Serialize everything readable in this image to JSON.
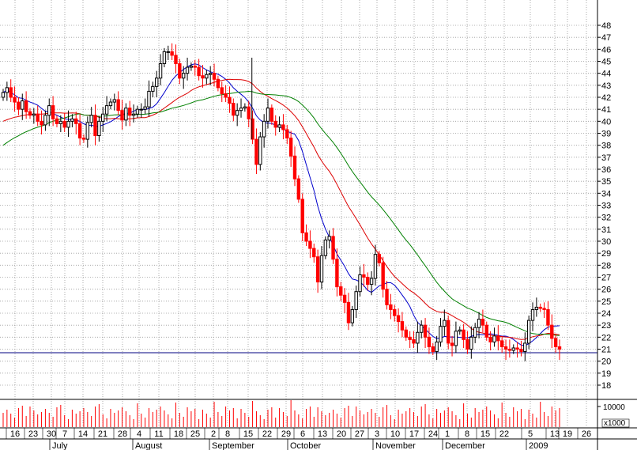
{
  "chart_data": {
    "type": "candlestick",
    "grid": true,
    "y_axis": {
      "position": "right",
      "ticks": [
        18,
        19,
        20,
        21,
        22,
        23,
        24,
        25,
        26,
        27,
        28,
        29,
        30,
        31,
        32,
        33,
        34,
        35,
        36,
        37,
        38,
        39,
        40,
        41,
        42,
        43,
        44,
        45,
        46,
        47,
        48
      ],
      "ylim": [
        17,
        49
      ],
      "tick_labels": [
        "18",
        "19",
        "20",
        "21",
        "22",
        "23",
        "24",
        "25",
        "26",
        "27",
        "28",
        "29",
        "30",
        "31",
        "32",
        "33",
        "34",
        "35",
        "36",
        "37",
        "38",
        "39",
        "40",
        "41",
        "42",
        "43",
        "44",
        "45",
        "46",
        "47",
        "48"
      ]
    },
    "x_axis": {
      "day_labels": [
        "16",
        "23",
        "30",
        "7",
        "14",
        "21",
        "28",
        "4",
        "11",
        "18",
        "25",
        "2",
        "8",
        "15",
        "22",
        "29",
        "6",
        "13",
        "20",
        "27",
        "3",
        "10",
        "17",
        "24",
        "1",
        "8",
        "15",
        "22",
        "5",
        "13",
        "19",
        "26"
      ],
      "month_labels": [
        "July",
        "August",
        "September",
        "October",
        "November",
        "December",
        "2009"
      ]
    },
    "support_line": 20.7,
    "volume_scale_label": "x1000",
    "volume_ticks": [
      {
        "value": 10000,
        "label": "10000"
      }
    ],
    "candles_close": [
      42.4,
      42.8,
      42.0,
      41.6,
      41.0,
      41.7,
      40.8,
      40.5,
      40.6,
      40.0,
      39.7,
      40.5,
      41.3,
      40.2,
      39.8,
      40.0,
      39.5,
      40.0,
      40.2,
      39.8,
      38.6,
      38.5,
      39.9,
      40.5,
      38.8,
      40.0,
      40.6,
      41.3,
      41.6,
      41.8,
      40.9,
      40.1,
      41.1,
      40.5,
      40.6,
      41.0,
      41.0,
      41.2,
      42.5,
      42.9,
      43.6,
      44.8,
      45.8,
      45.8,
      45.5,
      44.8,
      43.6,
      44.0,
      44.5,
      44.6,
      44.5,
      43.8,
      43.6,
      43.9,
      44.0,
      43.5,
      42.8,
      42.3,
      42.0,
      41.5,
      40.5,
      40.9,
      41.1,
      41.2,
      40.2,
      38.5,
      36.4,
      38.7,
      40.0,
      41.1,
      40.0,
      39.5,
      39.7,
      39.3,
      38.6,
      37.1,
      35.2,
      33.5,
      30.7,
      30.0,
      29.4,
      28.7,
      26.6,
      28.8,
      30.1,
      30.4,
      28.5,
      26.2,
      25.5,
      24.9,
      23.2,
      24.3,
      25.8,
      27.2,
      27.0,
      26.4,
      26.9,
      28.9,
      28.2,
      26.0,
      24.7,
      24.3,
      23.8,
      23.3,
      22.6,
      22.0,
      21.8,
      21.5,
      22.4,
      23.0,
      22.0,
      21.2,
      20.8,
      21.6,
      22.9,
      23.4,
      21.5,
      21.3,
      22.5,
      22.6,
      21.8,
      21.0,
      22.0,
      22.8,
      23.5,
      23.0,
      22.0,
      21.6,
      22.1,
      21.7,
      21.2,
      21.0,
      20.9,
      21.1,
      21.0,
      20.8,
      21.5,
      23.4,
      24.3,
      24.5,
      24.4,
      24.3,
      23.0,
      21.9,
      21.2,
      21.0
    ],
    "candles_open": [
      42.0,
      42.4,
      42.8,
      42.0,
      41.6,
      41.0,
      41.7,
      40.8,
      40.5,
      40.6,
      40.0,
      39.7,
      40.5,
      41.3,
      40.2,
      39.8,
      40.0,
      39.5,
      40.0,
      40.2,
      39.8,
      38.6,
      38.5,
      39.9,
      40.5,
      38.8,
      40.0,
      40.6,
      41.3,
      41.6,
      41.8,
      40.9,
      40.1,
      41.1,
      40.5,
      40.6,
      41.0,
      41.0,
      41.2,
      42.5,
      42.9,
      43.6,
      44.8,
      45.8,
      45.8,
      45.5,
      44.8,
      43.6,
      44.0,
      44.5,
      44.6,
      44.5,
      43.8,
      43.6,
      43.9,
      44.0,
      43.5,
      42.8,
      42.3,
      42.0,
      41.5,
      40.5,
      40.9,
      41.1,
      41.2,
      40.2,
      38.5,
      36.4,
      38.7,
      40.0,
      41.1,
      40.0,
      39.5,
      39.7,
      39.3,
      38.6,
      37.1,
      35.2,
      33.5,
      30.7,
      30.0,
      29.4,
      28.7,
      26.6,
      28.8,
      30.1,
      30.4,
      28.5,
      26.2,
      25.5,
      24.9,
      23.2,
      24.3,
      25.8,
      27.2,
      27.0,
      26.4,
      26.9,
      28.9,
      28.2,
      26.0,
      24.7,
      24.3,
      23.8,
      23.3,
      22.6,
      22.0,
      21.8,
      21.5,
      22.4,
      23.0,
      22.0,
      21.2,
      20.8,
      21.6,
      22.9,
      23.4,
      21.5,
      21.3,
      22.5,
      22.6,
      21.8,
      21.0,
      22.0,
      22.8,
      23.5,
      23.0,
      22.0,
      21.6,
      22.1,
      21.7,
      21.2,
      21.0,
      20.9,
      21.1,
      21.0,
      20.8,
      21.5,
      23.4,
      24.3,
      24.5,
      24.4,
      24.3,
      23.0,
      21.9,
      21.2
    ],
    "colors": {
      "up": "#000000",
      "down": "#ff0000",
      "ma_blue": "#0000cc",
      "ma_red": "#dd0000",
      "ma_green": "#008000",
      "support": "#000080",
      "grid": "#9a9a9a",
      "volume": "#ff0000"
    }
  }
}
